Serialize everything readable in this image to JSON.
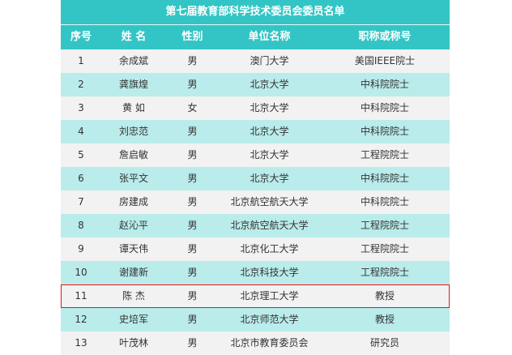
{
  "title": "第七届教育部科学技术委员会委员名单",
  "headers": [
    "序号",
    "姓 名",
    "性别",
    "单位名称",
    "职称或称号"
  ],
  "highlighted_row": 11,
  "colors": {
    "header": "#33c5c5",
    "row_odd": "#f2f2f2",
    "row_even": "#b9ecea",
    "highlight_border": "#ee1111"
  },
  "rows": [
    [
      "1",
      "余成斌",
      "男",
      "澳门大学",
      "美国IEEE院士"
    ],
    [
      "2",
      "龚旗煌",
      "男",
      "北京大学",
      "中科院院士"
    ],
    [
      "3",
      "黄  如",
      "女",
      "北京大学",
      "中科院院士"
    ],
    [
      "4",
      "刘忠范",
      "男",
      "北京大学",
      "中科院院士"
    ],
    [
      "5",
      "詹启敏",
      "男",
      "北京大学",
      "工程院院士"
    ],
    [
      "6",
      "张平文",
      "男",
      "北京大学",
      "中科院院士"
    ],
    [
      "7",
      "房建成",
      "男",
      "北京航空航天大学",
      "中科院院士"
    ],
    [
      "8",
      "赵沁平",
      "男",
      "北京航空航天大学",
      "工程院院士"
    ],
    [
      "9",
      "谭天伟",
      "男",
      "北京化工大学",
      "工程院院士"
    ],
    [
      "10",
      "谢建新",
      "男",
      "北京科技大学",
      "工程院院士"
    ],
    [
      "11",
      "陈  杰",
      "男",
      "北京理工大学",
      "教授"
    ],
    [
      "12",
      "史培军",
      "男",
      "北京师范大学",
      "教授"
    ],
    [
      "13",
      "叶茂林",
      "男",
      "北京市教育委员会",
      "研究员"
    ]
  ]
}
